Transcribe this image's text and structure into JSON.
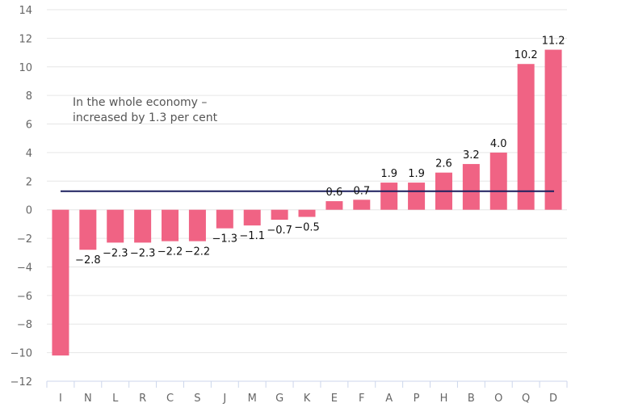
{
  "chart_data": {
    "type": "bar",
    "categories": [
      "I",
      "N",
      "L",
      "R",
      "C",
      "S",
      "J",
      "M",
      "G",
      "K",
      "E",
      "F",
      "A",
      "P",
      "H",
      "B",
      "O",
      "Q",
      "D"
    ],
    "values": [
      -10.2,
      -2.8,
      -2.3,
      -2.3,
      -2.2,
      -2.2,
      -1.3,
      -1.1,
      -0.7,
      -0.5,
      0.6,
      0.7,
      1.9,
      1.9,
      2.6,
      3.2,
      4.0,
      10.2,
      11.2
    ],
    "data_labels": [
      "",
      "−2.8",
      "−2.3",
      "−2.3",
      "−2.2",
      "−2.2",
      "−1.3",
      "−1.1",
      "−0.7",
      "−0.5",
      "0.6",
      "0.7",
      "1.9",
      "1.9",
      "2.6",
      "3.2",
      "4.0",
      "10.2",
      "11.2"
    ],
    "ylim": [
      -12,
      14
    ],
    "yticks": [
      14,
      12,
      10,
      8,
      6,
      4,
      2,
      0,
      -2,
      -4,
      -6,
      -8,
      -10,
      -12
    ],
    "ytick_labels": [
      "14",
      "12",
      "10",
      "8",
      "6",
      "4",
      "2",
      "0",
      "−2",
      "−4",
      "−6",
      "−8",
      "−10",
      "−12"
    ],
    "reference_line": {
      "value": 1.3
    },
    "annotation": [
      "In the whole economy –",
      "increased by 1.3 per cent"
    ],
    "grid": true,
    "colors": {
      "bar": "#f06384",
      "reference_line": "#1b1f5e",
      "grid": "#e6e6e6",
      "axis": "#ccd6eb"
    }
  }
}
